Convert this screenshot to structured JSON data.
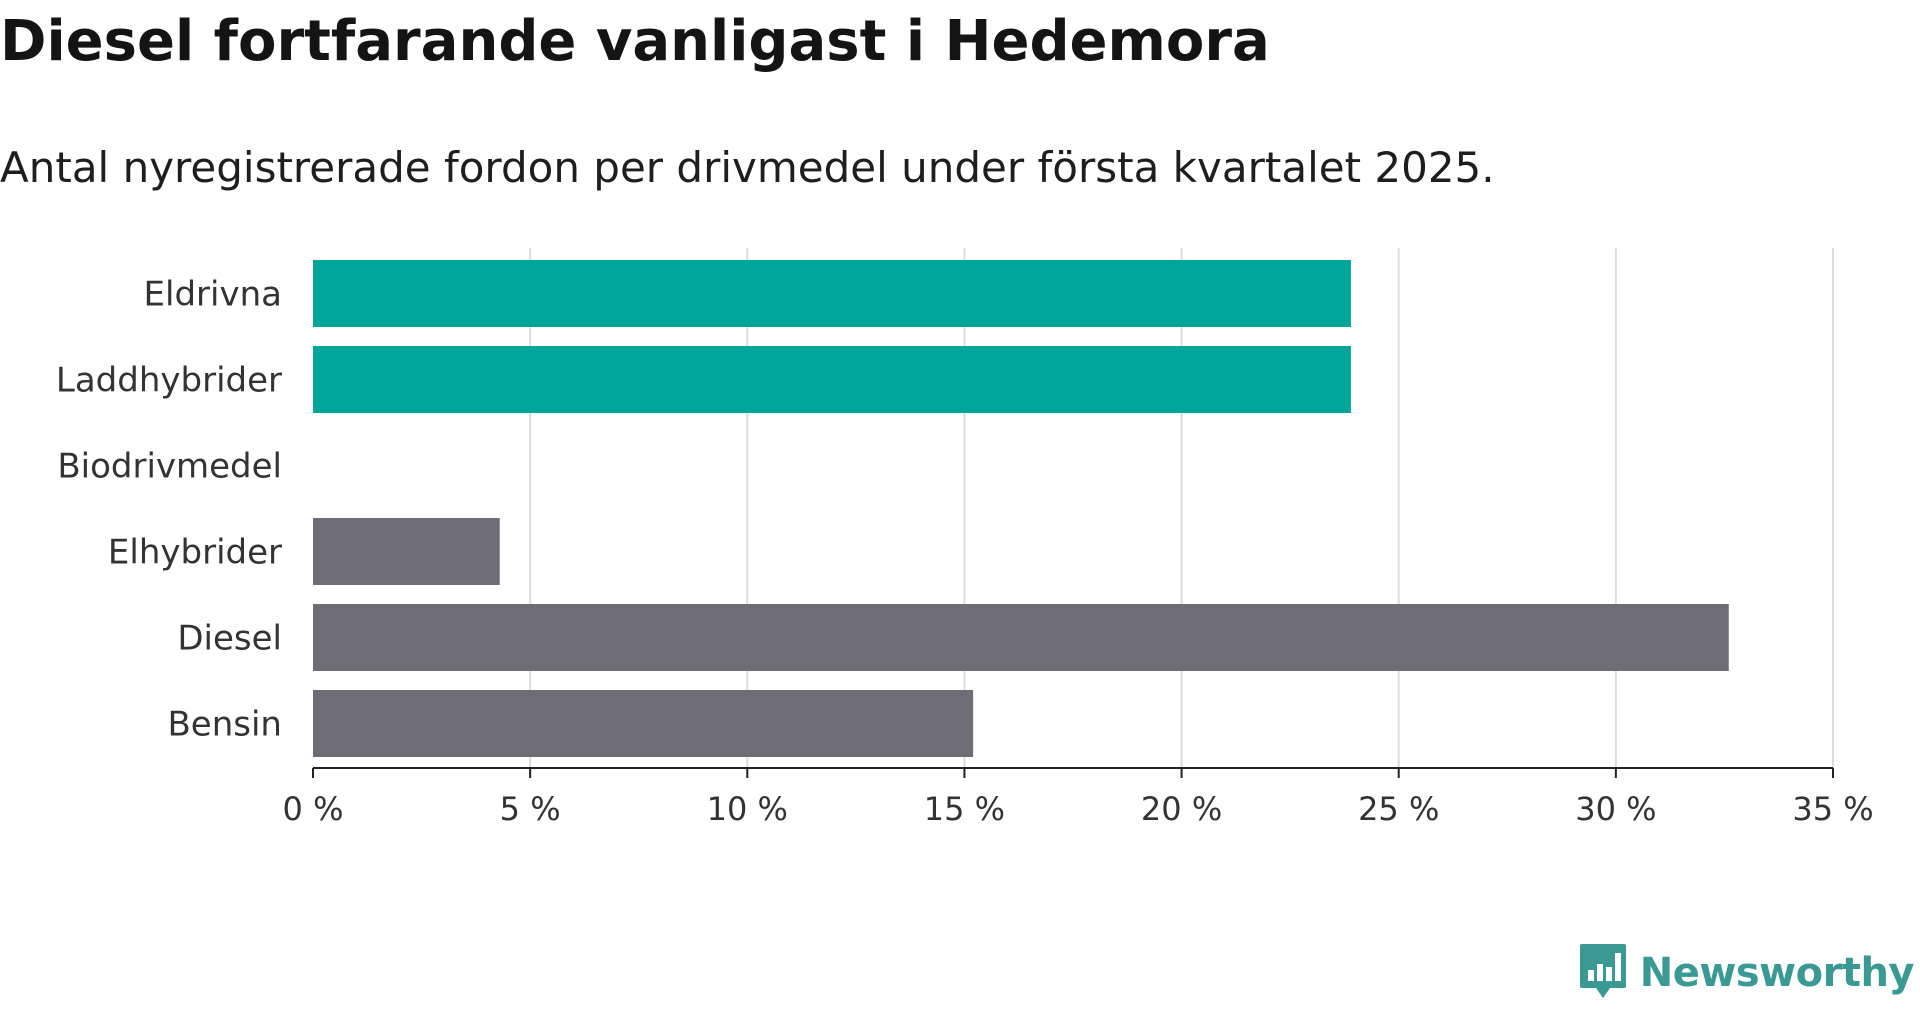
{
  "header": {
    "title": "Diesel fortfarande vanligast i Hedemora",
    "subtitle": "Antal nyregistrerade fordon per drivmedel under första kvartalet 2025."
  },
  "brand": {
    "name": "Newsworthy",
    "logo_icon": "newsworthy-chart-bubble-icon"
  },
  "colors": {
    "highlight": "#00a59a",
    "neutral": "#6e6d76",
    "grid": "#dcdcdc",
    "brand": "#3a9a93"
  },
  "chart_data": {
    "type": "bar",
    "orientation": "horizontal",
    "categories": [
      "Eldrivna",
      "Laddhybrider",
      "Biodrivmedel",
      "Elhybrider",
      "Diesel",
      "Bensin"
    ],
    "values": [
      23.9,
      23.9,
      0,
      4.3,
      32.6,
      15.2
    ],
    "bar_colors": [
      "#00a59a",
      "#00a59a",
      "#6e6d76",
      "#6e6d76",
      "#6e6d76",
      "#6e6d76"
    ],
    "title": "Diesel fortfarande vanligast i Hedemora",
    "subtitle": "Antal nyregistrerade fordon per drivmedel under första kvartalet 2025.",
    "xlim": [
      0,
      35
    ],
    "x_ticks": [
      0,
      5,
      10,
      15,
      20,
      25,
      30,
      35
    ],
    "x_tick_labels": [
      "0 %",
      "5 %",
      "10 %",
      "15 %",
      "20 %",
      "25 %",
      "30 %",
      "35 %"
    ],
    "grid": true,
    "legend": "none"
  }
}
